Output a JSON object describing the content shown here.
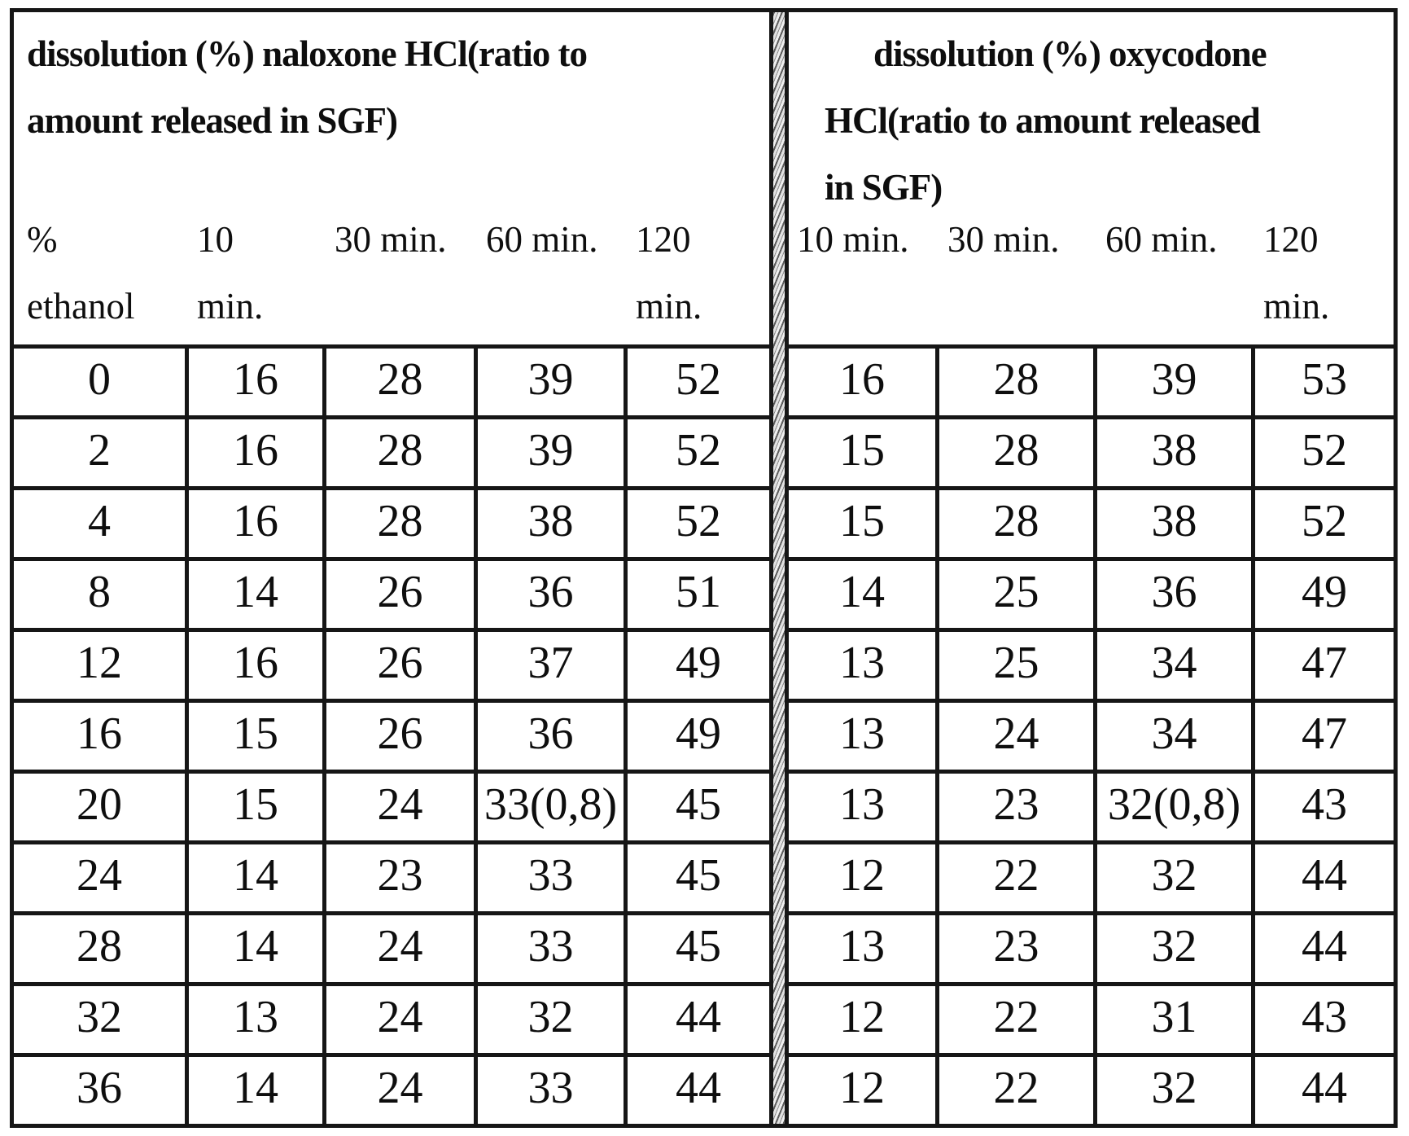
{
  "table": {
    "left": {
      "title_lines": [
        "dissolution (%) naloxone HCl(ratio to",
        "amount released in SGF)"
      ],
      "columns": [
        {
          "l1": "%",
          "l2": "ethanol"
        },
        {
          "l1": "10",
          "l2": "min."
        },
        {
          "l1": "30 min.",
          "l2": ""
        },
        {
          "l1": "60 min.",
          "l2": ""
        },
        {
          "l1": "120",
          "l2": "min."
        }
      ]
    },
    "right": {
      "title_lines": [
        "dissolution (%) oxycodone",
        "HCl(ratio to amount released",
        "in SGF)"
      ],
      "columns": [
        {
          "l1": "10 min.",
          "l2": ""
        },
        {
          "l1": "30 min.",
          "l2": ""
        },
        {
          "l1": "60 min.",
          "l2": ""
        },
        {
          "l1": "120",
          "l2": "min."
        }
      ]
    },
    "rows": [
      {
        "cells": [
          "0",
          "16",
          "28",
          "39",
          "52",
          "16",
          "28",
          "39",
          "53"
        ]
      },
      {
        "cells": [
          "2",
          "16",
          "28",
          "39",
          "52",
          "15",
          "28",
          "38",
          "52"
        ]
      },
      {
        "cells": [
          "4",
          "16",
          "28",
          "38",
          "52",
          "15",
          "28",
          "38",
          "52"
        ]
      },
      {
        "cells": [
          "8",
          "14",
          "26",
          "36",
          "51",
          "14",
          "25",
          "36",
          "49"
        ]
      },
      {
        "cells": [
          "12",
          "16",
          "26",
          "37",
          "49",
          "13",
          "25",
          "34",
          "47"
        ]
      },
      {
        "cells": [
          "16",
          "15",
          "26",
          "36",
          "49",
          "13",
          "24",
          "34",
          "47"
        ]
      },
      {
        "cells": [
          "20",
          "15",
          "24",
          "33(0,8)",
          "45",
          "13",
          "23",
          "32(0,8)",
          "43"
        ]
      },
      {
        "cells": [
          "24",
          "14",
          "23",
          "33",
          "45",
          "12",
          "22",
          "32",
          "44"
        ]
      },
      {
        "cells": [
          "28",
          "14",
          "24",
          "33",
          "45",
          "13",
          "23",
          "32",
          "44"
        ]
      },
      {
        "cells": [
          "32",
          "13",
          "24",
          "32",
          "44",
          "12",
          "22",
          "31",
          "43"
        ]
      },
      {
        "cells": [
          "36",
          "14",
          "24",
          "33",
          "44",
          "12",
          "22",
          "32",
          "44"
        ]
      }
    ]
  }
}
